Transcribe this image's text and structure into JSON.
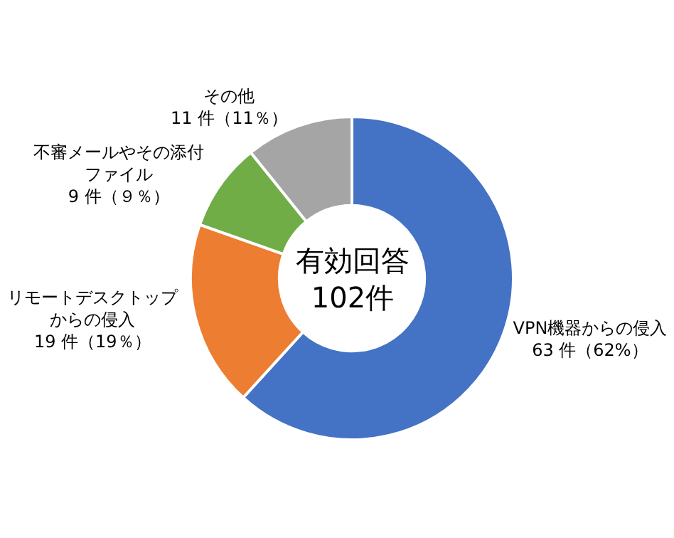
{
  "chart_data": {
    "type": "donut",
    "categories": [
      "VPN機器からの侵入",
      "リモートデスクトップからの侵入",
      "不審メールやその添付ファイル",
      "その他"
    ],
    "values": [
      63,
      19,
      9,
      11
    ],
    "value_labels": [
      "63 件（62%）",
      "19 件（19％）",
      "9 件（９％）",
      "11 件（11％）"
    ],
    "colors": [
      "#4472c4",
      "#ed7d31",
      "#70ad47",
      "#a5a5a5"
    ],
    "annotations": [
      "有効回答\n102件"
    ],
    "legend": false
  }
}
